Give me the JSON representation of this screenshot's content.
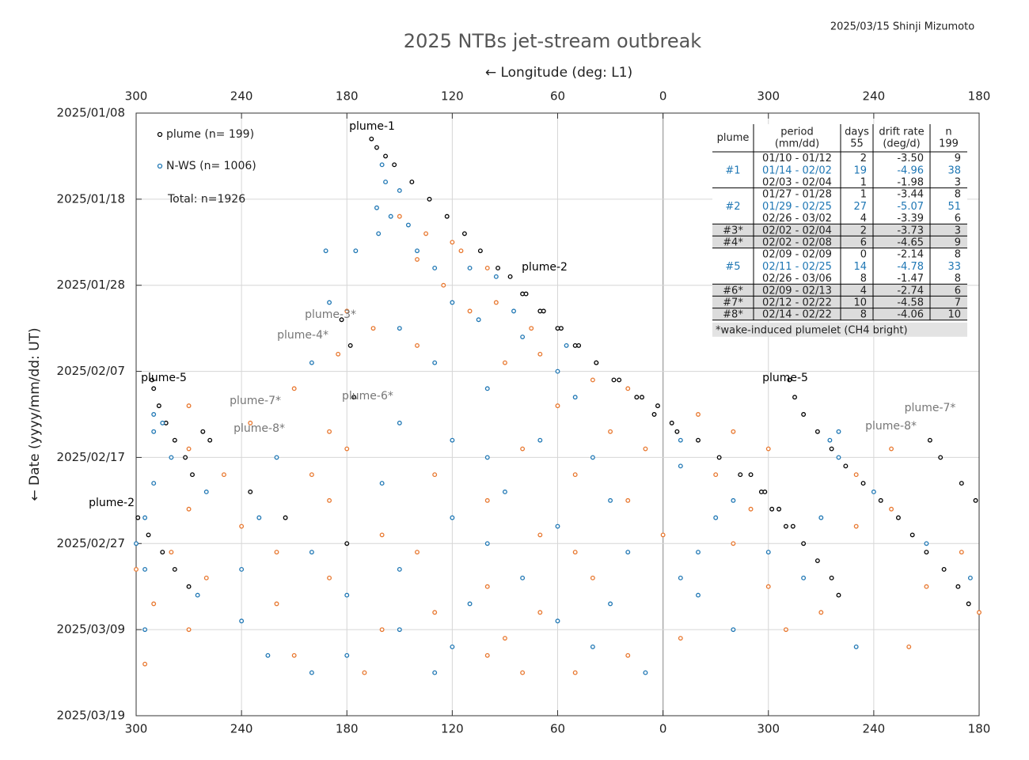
{
  "chart_data": {
    "type": "scatter",
    "title": "2025 NTBs jet-stream outbreak",
    "credit": "2025/03/15  Shinji Mizumoto",
    "xlabel": "← Longitude (deg: L1)",
    "ylabel": "← Date (yyyy/mm/dd: UT)",
    "xlim": [
      300,
      -180
    ],
    "xticks": [
      300,
      240,
      180,
      120,
      60,
      0,
      {
        "value": -60,
        "label": "300"
      },
      {
        "value": -120,
        "label": "240"
      },
      {
        "value": -180,
        "label": "180"
      }
    ],
    "ylim": [
      "2025/01/08",
      "2025/03/19"
    ],
    "yticks": [
      "2025/01/08",
      "2025/01/18",
      "2025/01/28",
      "2025/02/07",
      "2025/02/17",
      "2025/02/27",
      "2025/03/09",
      "2025/03/19"
    ],
    "grid": true,
    "legend_note": "Total: n=1926",
    "series": [
      {
        "name": "plume (n= 199)",
        "color": "#000000",
        "x": [
          166,
          163,
          158,
          153,
          143,
          133,
          123,
          113,
          104,
          94,
          80,
          70,
          60,
          50,
          38,
          25,
          12,
          3,
          -5,
          87,
          78,
          68,
          58,
          48,
          38,
          28,
          15,
          5,
          -8,
          -20,
          -32,
          -44,
          -56,
          -62,
          -70,
          291,
          290,
          287,
          283,
          278,
          272,
          268,
          299,
          293,
          285,
          278,
          270,
          -72,
          -75,
          -80,
          -88,
          -96,
          -104,
          -114,
          -124,
          -134,
          -142,
          -150,
          -160,
          -168,
          -174,
          -50,
          -58,
          -66,
          -74,
          -80,
          -88,
          -96,
          -100,
          -152,
          -158,
          -170,
          -178,
          183,
          178,
          176,
          262,
          258,
          235,
          215,
          180
        ],
        "y": [
          "2025/01/11",
          "2025/01/12",
          "2025/01/13",
          "2025/01/14",
          "2025/01/16",
          "2025/01/18",
          "2025/01/20",
          "2025/01/22",
          "2025/01/24",
          "2025/01/26",
          "2025/01/29",
          "2025/01/31",
          "2025/02/02",
          "2025/02/04",
          "2025/02/06",
          "2025/02/08",
          "2025/02/10",
          "2025/02/11",
          "2025/02/13",
          "2025/01/27",
          "2025/01/29",
          "2025/01/31",
          "2025/02/02",
          "2025/02/04",
          "2025/02/06",
          "2025/02/08",
          "2025/02/10",
          "2025/02/12",
          "2025/02/14",
          "2025/02/15",
          "2025/02/17",
          "2025/02/19",
          "2025/02/21",
          "2025/02/23",
          "2025/02/25",
          "2025/02/08",
          "2025/02/09",
          "2025/02/11",
          "2025/02/13",
          "2025/02/15",
          "2025/02/17",
          "2025/02/19",
          "2025/02/24",
          "2025/02/26",
          "2025/02/28",
          "2025/03/02",
          "2025/03/04",
          "2025/02/08",
          "2025/02/10",
          "2025/02/12",
          "2025/02/14",
          "2025/02/16",
          "2025/02/18",
          "2025/02/20",
          "2025/02/22",
          "2025/02/24",
          "2025/02/26",
          "2025/02/28",
          "2025/03/02",
          "2025/03/04",
          "2025/03/06",
          "2025/02/19",
          "2025/02/21",
          "2025/02/23",
          "2025/02/25",
          "2025/02/27",
          "2025/03/01",
          "2025/03/03",
          "2025/03/05",
          "2025/02/15",
          "2025/02/17",
          "2025/02/20",
          "2025/02/22",
          "2025/02/01",
          "2025/02/04",
          "2025/02/10",
          "2025/02/14",
          "2025/02/15",
          "2025/02/21",
          "2025/02/24",
          "2025/02/27"
        ]
      },
      {
        "name": "N-WS  (n= 1006)",
        "color": "#1f77b4",
        "x": [
          160,
          158,
          150,
          163,
          155,
          145,
          162,
          140,
          192,
          175,
          130,
          110,
          95,
          190,
          120,
          85,
          105,
          150,
          80,
          55,
          200,
          130,
          60,
          100,
          50,
          290,
          285,
          150,
          290,
          120,
          70,
          -10,
          -100,
          -95,
          280,
          220,
          100,
          40,
          -10,
          -100,
          290,
          260,
          160,
          90,
          30,
          -40,
          -120,
          295,
          230,
          120,
          60,
          -30,
          -90,
          300,
          200,
          100,
          20,
          -20,
          -60,
          -150,
          295,
          240,
          150,
          80,
          -10,
          -80,
          -175,
          265,
          180,
          110,
          30,
          -20,
          240,
          150,
          60,
          -40,
          295,
          225,
          180,
          120,
          40,
          -110,
          200,
          130,
          10
        ],
        "y": [
          "2025/01/14",
          "2025/01/16",
          "2025/01/17",
          "2025/01/19",
          "2025/01/20",
          "2025/01/21",
          "2025/01/22",
          "2025/01/24",
          "2025/01/24",
          "2025/01/24",
          "2025/01/26",
          "2025/01/26",
          "2025/01/27",
          "2025/01/30",
          "2025/01/30",
          "2025/01/31",
          "2025/02/01",
          "2025/02/02",
          "2025/02/03",
          "2025/02/04",
          "2025/02/06",
          "2025/02/06",
          "2025/02/07",
          "2025/02/09",
          "2025/02/10",
          "2025/02/12",
          "2025/02/13",
          "2025/02/13",
          "2025/02/14",
          "2025/02/15",
          "2025/02/15",
          "2025/02/15",
          "2025/02/14",
          "2025/02/15",
          "2025/02/17",
          "2025/02/17",
          "2025/02/17",
          "2025/02/17",
          "2025/02/18",
          "2025/02/17",
          "2025/02/20",
          "2025/02/21",
          "2025/02/20",
          "2025/02/21",
          "2025/02/22",
          "2025/02/22",
          "2025/02/21",
          "2025/02/24",
          "2025/02/24",
          "2025/02/24",
          "2025/02/25",
          "2025/02/24",
          "2025/02/24",
          "2025/02/27",
          "2025/02/28",
          "2025/02/27",
          "2025/02/28",
          "2025/02/28",
          "2025/02/28",
          "2025/02/27",
          "2025/03/02",
          "2025/03/02",
          "2025/03/02",
          "2025/03/03",
          "2025/03/03",
          "2025/03/03",
          "2025/03/03",
          "2025/03/05",
          "2025/03/05",
          "2025/03/06",
          "2025/03/06",
          "2025/03/05",
          "2025/03/08",
          "2025/03/09",
          "2025/03/08",
          "2025/03/09",
          "2025/03/09",
          "2025/03/12",
          "2025/03/12",
          "2025/03/11",
          "2025/03/11",
          "2025/03/11",
          "2025/03/14",
          "2025/03/14",
          "2025/03/14"
        ]
      },
      {
        "color": "#e8772e",
        "x": [
          150,
          135,
          120,
          140,
          115,
          100,
          125,
          180,
          110,
          95,
          165,
          75,
          140,
          185,
          70,
          90,
          210,
          40,
          20,
          270,
          60,
          -20,
          235,
          190,
          30,
          -40,
          270,
          180,
          80,
          10,
          -60,
          -130,
          250,
          200,
          130,
          50,
          -30,
          -110,
          270,
          190,
          100,
          20,
          -50,
          -130,
          240,
          160,
          70,
          0,
          -110,
          280,
          220,
          140,
          50,
          -40,
          -170,
          300,
          260,
          190,
          100,
          40,
          -60,
          -150,
          290,
          220,
          130,
          70,
          -90,
          -180,
          270,
          160,
          90,
          -10,
          -70,
          210,
          100,
          20,
          -140,
          295,
          170,
          80,
          50
        ],
        "y": [
          "2025/01/20",
          "2025/01/22",
          "2025/01/23",
          "2025/01/25",
          "2025/01/24",
          "2025/01/26",
          "2025/01/28",
          "2025/01/31",
          "2025/01/31",
          "2025/01/30",
          "2025/02/02",
          "2025/02/02",
          "2025/02/04",
          "2025/02/05",
          "2025/02/05",
          "2025/02/06",
          "2025/02/09",
          "2025/02/08",
          "2025/02/09",
          "2025/02/11",
          "2025/02/11",
          "2025/02/12",
          "2025/02/13",
          "2025/02/14",
          "2025/02/14",
          "2025/02/14",
          "2025/02/16",
          "2025/02/16",
          "2025/02/16",
          "2025/02/16",
          "2025/02/16",
          "2025/02/16",
          "2025/02/19",
          "2025/02/19",
          "2025/02/19",
          "2025/02/19",
          "2025/02/19",
          "2025/02/19",
          "2025/02/23",
          "2025/02/22",
          "2025/02/22",
          "2025/02/22",
          "2025/02/23",
          "2025/02/23",
          "2025/02/25",
          "2025/02/26",
          "2025/02/26",
          "2025/02/26",
          "2025/02/25",
          "2025/02/28",
          "2025/02/28",
          "2025/02/28",
          "2025/02/28",
          "2025/02/27",
          "2025/02/28",
          "2025/03/02",
          "2025/03/03",
          "2025/03/03",
          "2025/03/04",
          "2025/03/03",
          "2025/03/04",
          "2025/03/04",
          "2025/03/06",
          "2025/03/06",
          "2025/03/07",
          "2025/03/07",
          "2025/03/07",
          "2025/03/07",
          "2025/03/09",
          "2025/03/09",
          "2025/03/10",
          "2025/03/10",
          "2025/03/09",
          "2025/03/12",
          "2025/03/12",
          "2025/03/12",
          "2025/03/11",
          "2025/03/13",
          "2025/03/14",
          "2025/03/14",
          "2025/03/14"
        ]
      }
    ],
    "annotations": [
      {
        "text": "plume-1",
        "color": "#000000"
      },
      {
        "text": "plume-2",
        "color": "#000000"
      },
      {
        "text": "plume-5",
        "color": "#000000"
      },
      {
        "text": "plume-5",
        "color": "#000000"
      },
      {
        "text": "plume-2",
        "color": "#000000"
      },
      {
        "text": "plume-3*",
        "color": "#777777"
      },
      {
        "text": "plume-4*",
        "color": "#777777"
      },
      {
        "text": "plume-6*",
        "color": "#777777"
      },
      {
        "text": "plume-7*",
        "color": "#777777"
      },
      {
        "text": "plume-8*",
        "color": "#777777"
      },
      {
        "text": "plume-7*",
        "color": "#777777"
      },
      {
        "text": "plume-8*",
        "color": "#777777"
      }
    ],
    "table": {
      "header": [
        [
          "plume"
        ],
        [
          "period",
          "(mm/dd)"
        ],
        [
          "days",
          "55"
        ],
        [
          "drift rate",
          "(deg/d)"
        ],
        [
          "n",
          "199"
        ]
      ],
      "rows": [
        {
          "style": "plain",
          "cells": [
            null,
            "01/10 - 01/12",
            "2",
            "-3.50",
            "9"
          ]
        },
        {
          "style": "blue",
          "cells": [
            "#1",
            "01/14 - 02/02",
            "19",
            "-4.96",
            "38"
          ]
        },
        {
          "style": "plain",
          "cells": [
            null,
            "02/03 - 02/04",
            "1",
            "-1.98",
            "3"
          ]
        },
        {
          "style": "plain",
          "cells": [
            null,
            "01/27 - 01/28",
            "1",
            "-3.44",
            "8"
          ]
        },
        {
          "style": "blue",
          "cells": [
            "#2",
            "01/29 - 02/25",
            "27",
            "-5.07",
            "51"
          ]
        },
        {
          "style": "plain",
          "cells": [
            null,
            "02/26 - 03/02",
            "4",
            "-3.39",
            "6"
          ]
        },
        {
          "style": "gray",
          "cells": [
            "#3*",
            "02/02 - 02/04",
            "2",
            "-3.73",
            "3"
          ]
        },
        {
          "style": "gray",
          "cells": [
            "#4*",
            "02/02 - 02/08",
            "6",
            "-4.65",
            "9"
          ]
        },
        {
          "style": "plain",
          "cells": [
            null,
            "02/09 - 02/09",
            "0",
            "-2.14",
            "8"
          ]
        },
        {
          "style": "blue",
          "cells": [
            "#5",
            "02/11 - 02/25",
            "14",
            "-4.78",
            "33"
          ]
        },
        {
          "style": "plain",
          "cells": [
            null,
            "02/26 - 03/06",
            "8",
            "-1.47",
            "8"
          ]
        },
        {
          "style": "gray",
          "cells": [
            "#6*",
            "02/09 - 02/13",
            "4",
            "-2.74",
            "6"
          ]
        },
        {
          "style": "gray",
          "cells": [
            "#7*",
            "02/12 - 02/22",
            "10",
            "-4.58",
            "7"
          ]
        },
        {
          "style": "gray",
          "cells": [
            "#8*",
            "02/14 - 02/22",
            "8",
            "-4.06",
            "10"
          ]
        }
      ],
      "footnote": "*wake-induced plumelet (CH4 bright)"
    }
  }
}
